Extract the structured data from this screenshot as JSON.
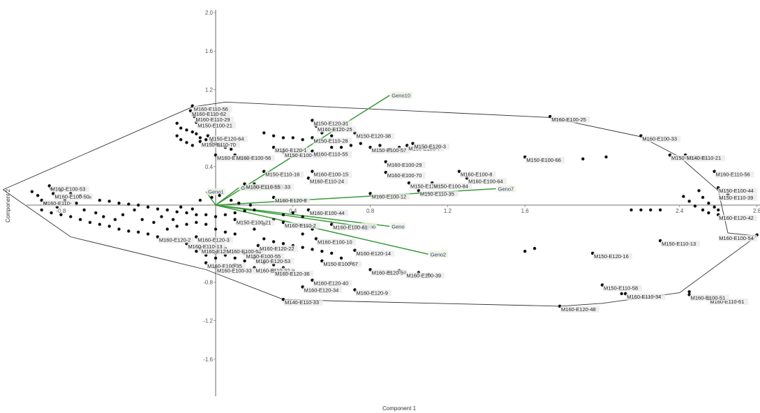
{
  "chart_data": {
    "type": "scatter",
    "title": "",
    "xlabel": "Component 1",
    "ylabel": "Component 2",
    "xlim": [
      -1.0,
      3.0
    ],
    "ylim": [
      -2.05,
      2.05
    ],
    "xticks": [
      {
        "v": -0.8,
        "label": "-0.8"
      },
      {
        "v": 0.4,
        "label": "0.4"
      },
      {
        "v": 0.8,
        "label": "0.8"
      },
      {
        "v": 1.2,
        "label": "1.2"
      },
      {
        "v": 1.6,
        "label": "1.6"
      },
      {
        "v": 2.4,
        "label": "2.4"
      },
      {
        "v": 2.8,
        "label": "2.8"
      }
    ],
    "yticks": [
      {
        "v": 2.0,
        "label": "2.0"
      },
      {
        "v": 1.6,
        "label": "1.6"
      },
      {
        "v": 1.2,
        "label": "1.2"
      },
      {
        "v": 0.4,
        "label": "0.4"
      },
      {
        "v": -0.8,
        "label": "-0.8"
      },
      {
        "v": -1.2,
        "label": "-1.2"
      },
      {
        "v": -1.6,
        "label": "-1.6"
      }
    ],
    "hull": [
      [
        -1.1,
        0.16
      ],
      [
        -0.12,
        1.02
      ],
      [
        0.05,
        1.07
      ],
      [
        1.73,
        0.91
      ],
      [
        2.2,
        0.71
      ],
      [
        2.4,
        0.5
      ],
      [
        2.6,
        0.15
      ],
      [
        2.65,
        -0.29
      ],
      [
        2.8,
        -0.32
      ],
      [
        2.4,
        -0.91
      ],
      [
        2.0,
        -1.02
      ],
      [
        1.78,
        -1.05
      ],
      [
        0.7,
        -1.0
      ],
      [
        0.35,
        -0.98
      ],
      [
        -0.05,
        -0.67
      ],
      [
        -0.75,
        -0.33
      ],
      [
        -1.1,
        0.16
      ]
    ],
    "vectors": [
      {
        "name": "Geno10",
        "x": 0.9,
        "y": 1.14
      },
      {
        "name": "Geno7",
        "x": 1.45,
        "y": 0.17
      },
      {
        "name": "Geno2",
        "x": 1.1,
        "y": -0.51
      },
      {
        "name": "Geno1",
        "x": -0.05,
        "y": 0.14
      },
      {
        "name": "Geno12",
        "x": 0.12,
        "y": 0.18
      },
      {
        "name": "Geno",
        "x": 0.9,
        "y": -0.22
      },
      {
        "name": "Geno",
        "x": 0.75,
        "y": -0.22
      }
    ],
    "points": [
      {
        "x": -0.12,
        "y": 1.03,
        "label": "M160-E110-56"
      },
      {
        "x": -0.13,
        "y": 0.98,
        "label": "M160-E110-62"
      },
      {
        "x": -0.11,
        "y": 0.92,
        "label": "M160-E110-29"
      },
      {
        "x": -0.1,
        "y": 0.86,
        "label": "M150-E100-21"
      },
      {
        "x": 1.73,
        "y": 0.92,
        "label": "M160-E100-25"
      },
      {
        "x": 2.2,
        "y": 0.72,
        "label": "M160-E100-33"
      },
      {
        "x": 2.35,
        "y": 0.52,
        "label": "M150-E100-39"
      },
      {
        "x": 2.43,
        "y": 0.52,
        "label": "M140-E110-21"
      },
      {
        "x": 2.58,
        "y": 0.35,
        "label": "M160-E110-56"
      },
      {
        "x": 2.6,
        "y": 0.18,
        "label": "M150-E100-44"
      },
      {
        "x": 2.65,
        "y": 0.11,
        "label": "M150-E110-39"
      },
      {
        "x": 2.6,
        "y": -0.1,
        "label": "M160-E120-42"
      },
      {
        "x": 2.8,
        "y": -0.31,
        "label": "M160-E100-54"
      },
      {
        "x": 2.55,
        "y": -0.97,
        "label": "M160-E110-61"
      },
      {
        "x": 2.12,
        "y": -0.92,
        "label": "M160-E110-34"
      },
      {
        "x": 2.45,
        "y": -0.93,
        "label": "M160-E100-51"
      },
      {
        "x": 1.78,
        "y": -1.05,
        "label": "M160-E120-48"
      },
      {
        "x": 2.0,
        "y": -0.83,
        "label": "M150-E110-58"
      },
      {
        "x": 2.3,
        "y": -0.37,
        "label": "M150-E110-13"
      },
      {
        "x": 1.95,
        "y": -0.5,
        "label": "M150-E120-16"
      },
      {
        "x": 0.35,
        "y": -0.98,
        "label": "M140-E110-33"
      },
      {
        "x": 0.72,
        "y": -0.88,
        "label": "M160-E120-9"
      },
      {
        "x": 0.45,
        "y": -0.85,
        "label": "M160-E120-34"
      },
      {
        "x": 0.5,
        "y": -0.78,
        "label": "M160-E120-40"
      },
      {
        "x": 0.8,
        "y": -0.67,
        "label": "M160-E120-5"
      },
      {
        "x": 0.98,
        "y": -0.7,
        "label": "M160-E100-39"
      },
      {
        "x": 0.55,
        "y": -0.58,
        "label": "M150-E100-67"
      },
      {
        "x": 0.72,
        "y": -0.47,
        "label": "M160-E120-14"
      },
      {
        "x": 0.6,
        "y": -0.2,
        "label": "M160-E100-61"
      },
      {
        "x": 0.52,
        "y": -0.35,
        "label": "M160-E100-10"
      },
      {
        "x": 0.48,
        "y": -0.05,
        "label": "M160-E100-44"
      },
      {
        "x": 0.8,
        "y": 0.12,
        "label": "M160-E100-12"
      },
      {
        "x": 1.0,
        "y": 0.23,
        "label": "M150-E120-1"
      },
      {
        "x": 1.12,
        "y": 0.23,
        "label": "M150-E100-84"
      },
      {
        "x": 1.05,
        "y": 0.15,
        "label": "M150-E110-35"
      },
      {
        "x": 0.88,
        "y": 0.45,
        "label": "M160-E100-29"
      },
      {
        "x": 0.88,
        "y": 0.34,
        "label": "M160-E100-70"
      },
      {
        "x": 1.26,
        "y": 0.35,
        "label": "M160-E100-8"
      },
      {
        "x": 1.3,
        "y": 0.28,
        "label": "M160-E100-64"
      },
      {
        "x": 1.6,
        "y": 0.5,
        "label": "M150-E100-66"
      },
      {
        "x": 0.5,
        "y": 0.35,
        "label": "M160-E100-15"
      },
      {
        "x": 0.48,
        "y": 0.28,
        "label": "M160-E110-24"
      },
      {
        "x": 0.25,
        "y": 0.35,
        "label": "M150-E110-16"
      },
      {
        "x": 0.2,
        "y": 0.22,
        "label": "M150-E120-33"
      },
      {
        "x": 0.15,
        "y": 0.22,
        "label": "M160-E110-55"
      },
      {
        "x": 0.3,
        "y": 0.08,
        "label": "M160-E120-8"
      },
      {
        "x": 0.72,
        "y": 0.75,
        "label": "M150-E120-38"
      },
      {
        "x": 0.8,
        "y": 0.6,
        "label": "M150-E100-57"
      },
      {
        "x": 0.99,
        "y": 0.62,
        "label": "M160-E100-7"
      },
      {
        "x": 1.02,
        "y": 0.64,
        "label": "M150-E120-3"
      },
      {
        "x": 0.5,
        "y": 0.88,
        "label": "M150-E120-31"
      },
      {
        "x": 0.52,
        "y": 0.82,
        "label": "M160-E120-25"
      },
      {
        "x": 0.5,
        "y": 0.7,
        "label": "M150-E110-28"
      },
      {
        "x": 0.35,
        "y": 0.55,
        "label": "M150-E100-11"
      },
      {
        "x": 0.5,
        "y": 0.56,
        "label": "M160-E110-55"
      },
      {
        "x": 0.3,
        "y": 0.6,
        "label": "M150-E120-1"
      },
      {
        "x": 0.0,
        "y": 0.52,
        "label": "M160-E110-4"
      },
      {
        "x": 0.1,
        "y": 0.52,
        "label": "M160-E100-56"
      },
      {
        "x": -0.08,
        "y": 0.66,
        "label": "M150-E110-70"
      },
      {
        "x": -0.04,
        "y": 0.72,
        "label": "M150-E120-64"
      },
      {
        "x": -0.86,
        "y": 0.2,
        "label": "M160-E100-53"
      },
      {
        "x": -0.84,
        "y": 0.12,
        "label": "M160-E100-50"
      },
      {
        "x": -0.9,
        "y": 0.05,
        "label": "M160-E110-"
      },
      {
        "x": -0.1,
        "y": -0.33,
        "label": "M160-E120-3"
      },
      {
        "x": -0.3,
        "y": -0.33,
        "label": "M160-E120-2"
      },
      {
        "x": -0.15,
        "y": -0.4,
        "label": "M160-E110-13"
      },
      {
        "x": -0.08,
        "y": -0.45,
        "label": "M160-E120-"
      },
      {
        "x": 0.05,
        "y": -0.45,
        "label": "M160-E100-58"
      },
      {
        "x": 0.15,
        "y": -0.5,
        "label": "M150-E100-55"
      },
      {
        "x": 0.22,
        "y": -0.42,
        "label": "M160-E120-22"
      },
      {
        "x": 0.2,
        "y": -0.55,
        "label": "M160-E120-53"
      },
      {
        "x": -0.05,
        "y": -0.6,
        "label": "M160-E100-35"
      },
      {
        "x": 0.0,
        "y": -0.65,
        "label": "M160-E100-33"
      },
      {
        "x": 0.2,
        "y": -0.65,
        "label": "M160-E110-32"
      },
      {
        "x": 0.3,
        "y": -0.68,
        "label": "M160-E120-36"
      },
      {
        "x": 0.1,
        "y": -0.15,
        "label": "M150-E100-21"
      },
      {
        "x": 0.35,
        "y": -0.18,
        "label": "M160-E110-2"
      }
    ],
    "unlabeled_points": [
      [
        -0.85,
        0.17
      ],
      [
        -0.8,
        0.15
      ],
      [
        -0.75,
        0.12
      ],
      [
        -0.7,
        0.1
      ],
      [
        -0.65,
        0.08
      ],
      [
        -0.6,
        0.05
      ],
      [
        -0.55,
        0.04
      ],
      [
        -0.5,
        0.02
      ],
      [
        -0.45,
        0.01
      ],
      [
        -0.4,
        0.0
      ],
      [
        -0.35,
        -0.02
      ],
      [
        -0.3,
        -0.04
      ],
      [
        -0.25,
        -0.05
      ],
      [
        -0.2,
        -0.07
      ],
      [
        -0.15,
        -0.08
      ],
      [
        -0.1,
        -0.1
      ],
      [
        -0.05,
        -0.1
      ],
      [
        0.0,
        -0.12
      ],
      [
        0.05,
        -0.1
      ],
      [
        0.1,
        -0.08
      ],
      [
        0.15,
        -0.06
      ],
      [
        0.2,
        -0.05
      ],
      [
        -0.9,
        -0.05
      ],
      [
        -0.85,
        -0.08
      ],
      [
        -0.8,
        -0.1
      ],
      [
        -0.75,
        -0.12
      ],
      [
        -0.7,
        -0.15
      ],
      [
        -0.65,
        -0.18
      ],
      [
        -0.6,
        -0.2
      ],
      [
        -0.55,
        -0.22
      ],
      [
        -0.5,
        -0.25
      ],
      [
        -0.45,
        -0.27
      ],
      [
        -0.4,
        -0.28
      ],
      [
        -0.35,
        -0.3
      ],
      [
        -0.25,
        -0.25
      ],
      [
        -0.2,
        -0.22
      ],
      [
        -0.15,
        -0.2
      ],
      [
        -0.1,
        -0.18
      ],
      [
        -0.05,
        -0.2
      ],
      [
        0.0,
        -0.25
      ],
      [
        0.05,
        -0.28
      ],
      [
        0.1,
        -0.3
      ],
      [
        0.2,
        -0.25
      ],
      [
        0.25,
        -0.2
      ],
      [
        0.3,
        -0.15
      ],
      [
        0.35,
        -0.1
      ],
      [
        0.4,
        -0.08
      ],
      [
        0.45,
        -0.12
      ],
      [
        -0.95,
        0.14
      ],
      [
        -0.92,
        0.1
      ],
      [
        -0.88,
        0.02
      ],
      [
        -0.82,
        -0.02
      ],
      [
        -0.78,
        0.05
      ],
      [
        -0.72,
        0.02
      ],
      [
        -0.68,
        -0.05
      ],
      [
        -0.62,
        -0.08
      ],
      [
        -0.58,
        -0.12
      ],
      [
        -0.52,
        -0.15
      ],
      [
        -0.48,
        -0.1
      ],
      [
        -0.42,
        -0.05
      ],
      [
        -0.38,
        -0.15
      ],
      [
        -0.32,
        -0.18
      ],
      [
        -0.28,
        -0.12
      ],
      [
        -0.22,
        -0.15
      ],
      [
        -0.18,
        -0.02
      ],
      [
        -0.12,
        -0.04
      ],
      [
        -0.08,
        0.05
      ],
      [
        -0.02,
        0.08
      ],
      [
        0.02,
        0.1
      ],
      [
        0.08,
        0.05
      ],
      [
        0.12,
        0.02
      ],
      [
        0.18,
        0.0
      ],
      [
        -0.2,
        0.85
      ],
      [
        -0.18,
        0.8
      ],
      [
        -0.15,
        0.78
      ],
      [
        -0.12,
        0.76
      ],
      [
        -0.1,
        0.74
      ],
      [
        -0.08,
        0.7
      ],
      [
        -0.05,
        0.68
      ],
      [
        -0.02,
        0.66
      ],
      [
        0.0,
        0.64
      ],
      [
        0.02,
        0.62
      ],
      [
        0.05,
        0.6
      ],
      [
        0.08,
        0.58
      ],
      [
        -0.2,
        0.72
      ],
      [
        -0.18,
        0.68
      ],
      [
        -0.15,
        0.65
      ],
      [
        -0.12,
        0.62
      ],
      [
        0.25,
        0.75
      ],
      [
        0.3,
        0.72
      ],
      [
        0.35,
        0.7
      ],
      [
        0.4,
        0.7
      ],
      [
        0.45,
        0.68
      ],
      [
        0.55,
        0.75
      ],
      [
        0.6,
        0.6
      ],
      [
        0.65,
        0.6
      ],
      [
        0.7,
        0.62
      ],
      [
        0.75,
        0.64
      ],
      [
        0.85,
        0.62
      ],
      [
        0.9,
        0.58
      ],
      [
        0.95,
        0.6
      ],
      [
        0.6,
        0.72
      ],
      [
        0.0,
        -0.5
      ],
      [
        0.05,
        -0.52
      ],
      [
        0.1,
        -0.55
      ],
      [
        0.15,
        -0.58
      ],
      [
        0.25,
        -0.6
      ],
      [
        0.3,
        -0.62
      ],
      [
        0.35,
        -0.65
      ],
      [
        0.4,
        -0.68
      ],
      [
        0.0,
        -0.55
      ],
      [
        -0.05,
        -0.52
      ],
      [
        -0.1,
        -0.48
      ],
      [
        0.1,
        -0.62
      ],
      [
        0.25,
        -0.35
      ],
      [
        0.3,
        -0.38
      ],
      [
        0.35,
        -0.4
      ],
      [
        0.4,
        -0.42
      ],
      [
        0.45,
        -0.44
      ],
      [
        0.5,
        -0.46
      ],
      [
        0.55,
        -0.48
      ],
      [
        0.6,
        -0.5
      ],
      [
        0.65,
        -0.55
      ],
      [
        0.7,
        -0.6
      ],
      [
        0.45,
        -0.3
      ],
      [
        0.5,
        -0.25
      ],
      [
        1.9,
        0.48
      ],
      [
        2.02,
        0.5
      ],
      [
        2.5,
        0.15
      ],
      [
        2.52,
        0.08
      ],
      [
        2.55,
        0.02
      ],
      [
        2.58,
        -0.02
      ],
      [
        2.52,
        -0.05
      ],
      [
        2.48,
        -0.01
      ],
      [
        2.45,
        0.04
      ],
      [
        2.42,
        0.09
      ],
      [
        2.55,
        -0.08
      ],
      [
        2.6,
        -0.05
      ],
      [
        2.15,
        -0.05
      ],
      [
        2.2,
        -0.05
      ],
      [
        2.25,
        -0.05
      ],
      [
        2.3,
        -0.05
      ],
      [
        1.65,
        -0.45
      ],
      [
        1.6,
        -0.48
      ],
      [
        2.1,
        -0.92
      ],
      [
        2.45,
        -0.9
      ],
      [
        1.05,
        -0.7
      ],
      [
        1.1,
        -0.72
      ],
      [
        0.95,
        -0.68
      ],
      [
        0.9,
        -0.7
      ]
    ]
  }
}
